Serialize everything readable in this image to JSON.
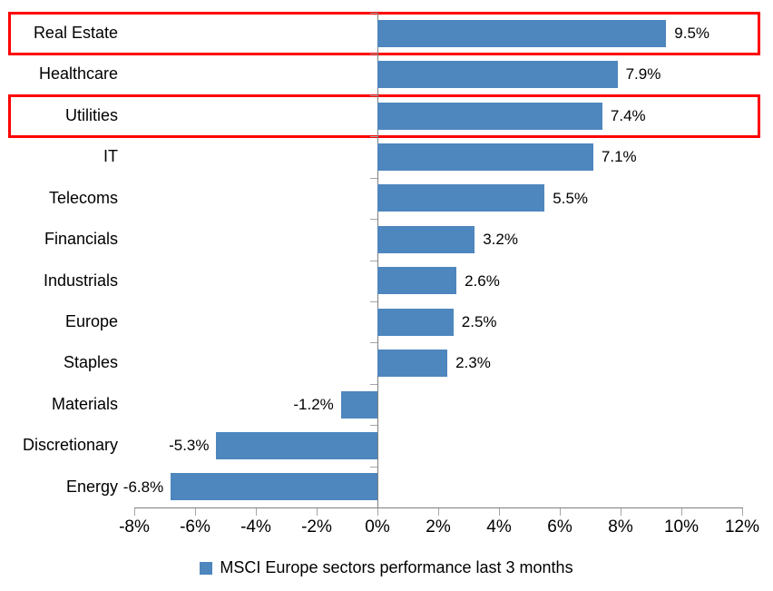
{
  "chart_data": {
    "type": "bar",
    "orientation": "horizontal",
    "title": "",
    "xlabel": "",
    "ylabel": "",
    "categories": [
      "Real Estate",
      "Healthcare",
      "Utilities",
      "IT",
      "Telecoms",
      "Financials",
      "Industrials",
      "Europe",
      "Staples",
      "Materials",
      "Discretionary",
      "Energy"
    ],
    "values": [
      9.5,
      7.9,
      7.4,
      7.1,
      5.5,
      3.2,
      2.6,
      2.5,
      2.3,
      -1.2,
      -5.3,
      -6.8
    ],
    "value_labels": [
      "9.5%",
      "7.9%",
      "7.4%",
      "7.1%",
      "5.5%",
      "3.2%",
      "2.6%",
      "2.5%",
      "2.3%",
      "-1.2%",
      "-5.3%",
      "-6.8%"
    ],
    "x_ticks": [
      "-8%",
      "-6%",
      "-4%",
      "-2%",
      "0%",
      "2%",
      "4%",
      "6%",
      "8%",
      "10%",
      "12%"
    ],
    "x_tick_values": [
      -8,
      -6,
      -4,
      -2,
      0,
      2,
      4,
      6,
      8,
      10,
      12
    ],
    "x_min": -8,
    "x_max": 12,
    "grid": false,
    "legend": "MSCI Europe sectors performance last 3 months",
    "legend_position": "bottom",
    "bar_color": "#4e86be",
    "highlight_color": "#fe0000",
    "highlighted_categories": [
      "Real Estate",
      "Utilities"
    ]
  }
}
